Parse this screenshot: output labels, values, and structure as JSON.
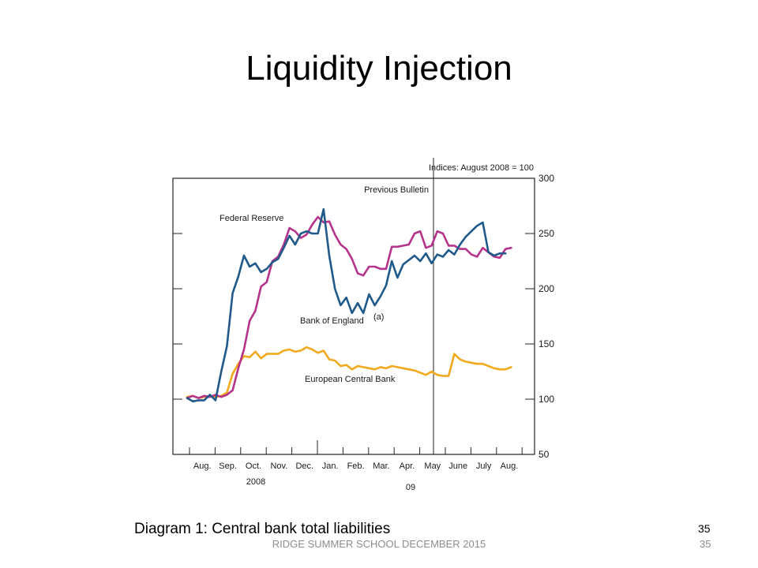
{
  "slide": {
    "title": "Liquidity Injection",
    "caption": "Diagram 1: Central bank total liabilities",
    "page_number": "35",
    "footer": "RIDGE SUMMER SCHOOL DECEMBER 2015",
    "footer_page_number": "35"
  },
  "chart_data": {
    "type": "line",
    "units_label": "Indices: August 2008 = 100",
    "annotation": "Previous Bulletin",
    "ylim": [
      50,
      300
    ],
    "y_ticks": [
      300,
      250,
      200,
      150,
      100,
      50
    ],
    "months": [
      "Aug.",
      "Sep.",
      "Oct.",
      "Nov.",
      "Dec.",
      "Jan.",
      "Feb.",
      "Mar.",
      "Apr.",
      "May",
      "June",
      "July",
      "Aug."
    ],
    "year_labels": [
      "2008",
      "09"
    ],
    "divider_week": 37,
    "grid": false,
    "colors": {
      "fed": "#b5338a",
      "boe": "#1f5a8a",
      "ecb": "#f2a91e"
    },
    "series": [
      {
        "name": "Federal Reserve",
        "values": [
          101,
          103,
          101,
          103,
          102,
          104,
          102,
          104,
          108,
          128,
          145,
          171,
          180,
          202,
          206,
          225,
          229,
          240,
          255,
          252,
          246,
          249,
          258,
          265,
          260,
          261,
          249,
          240,
          236,
          227,
          214,
          212,
          220,
          220,
          218,
          218,
          238,
          238,
          239,
          240,
          250,
          252,
          237,
          239,
          252,
          250,
          239,
          239,
          236,
          236,
          231,
          229,
          237,
          233,
          229,
          228,
          236,
          237
        ]
      },
      {
        "name": "Bank of England(a)",
        "values": [
          101,
          98,
          99,
          99,
          104,
          99,
          125,
          148,
          196,
          211,
          230,
          220,
          223,
          215,
          218,
          224,
          227,
          237,
          248,
          240,
          250,
          252,
          250,
          250,
          272,
          230,
          200,
          185,
          192,
          178,
          187,
          178,
          195,
          185,
          193,
          203,
          225,
          210,
          222,
          226,
          230,
          225,
          232,
          223,
          231,
          229,
          235,
          231,
          240,
          247,
          252,
          257,
          260,
          233,
          230,
          232,
          232
        ]
      },
      {
        "name": "European Central Bank",
        "values": [
          102,
          103,
          101,
          102,
          103,
          102,
          103,
          106,
          123,
          132,
          139,
          138,
          143,
          137,
          141,
          141,
          141,
          144,
          145,
          143,
          144,
          147,
          145,
          142,
          144,
          136,
          135,
          130,
          131,
          127,
          130,
          129,
          128,
          127,
          129,
          128,
          130,
          129,
          128,
          127,
          126,
          124,
          122,
          125,
          122,
          121,
          121,
          141,
          136,
          134,
          133,
          132,
          132,
          130,
          128,
          127,
          127,
          129
        ]
      }
    ]
  }
}
